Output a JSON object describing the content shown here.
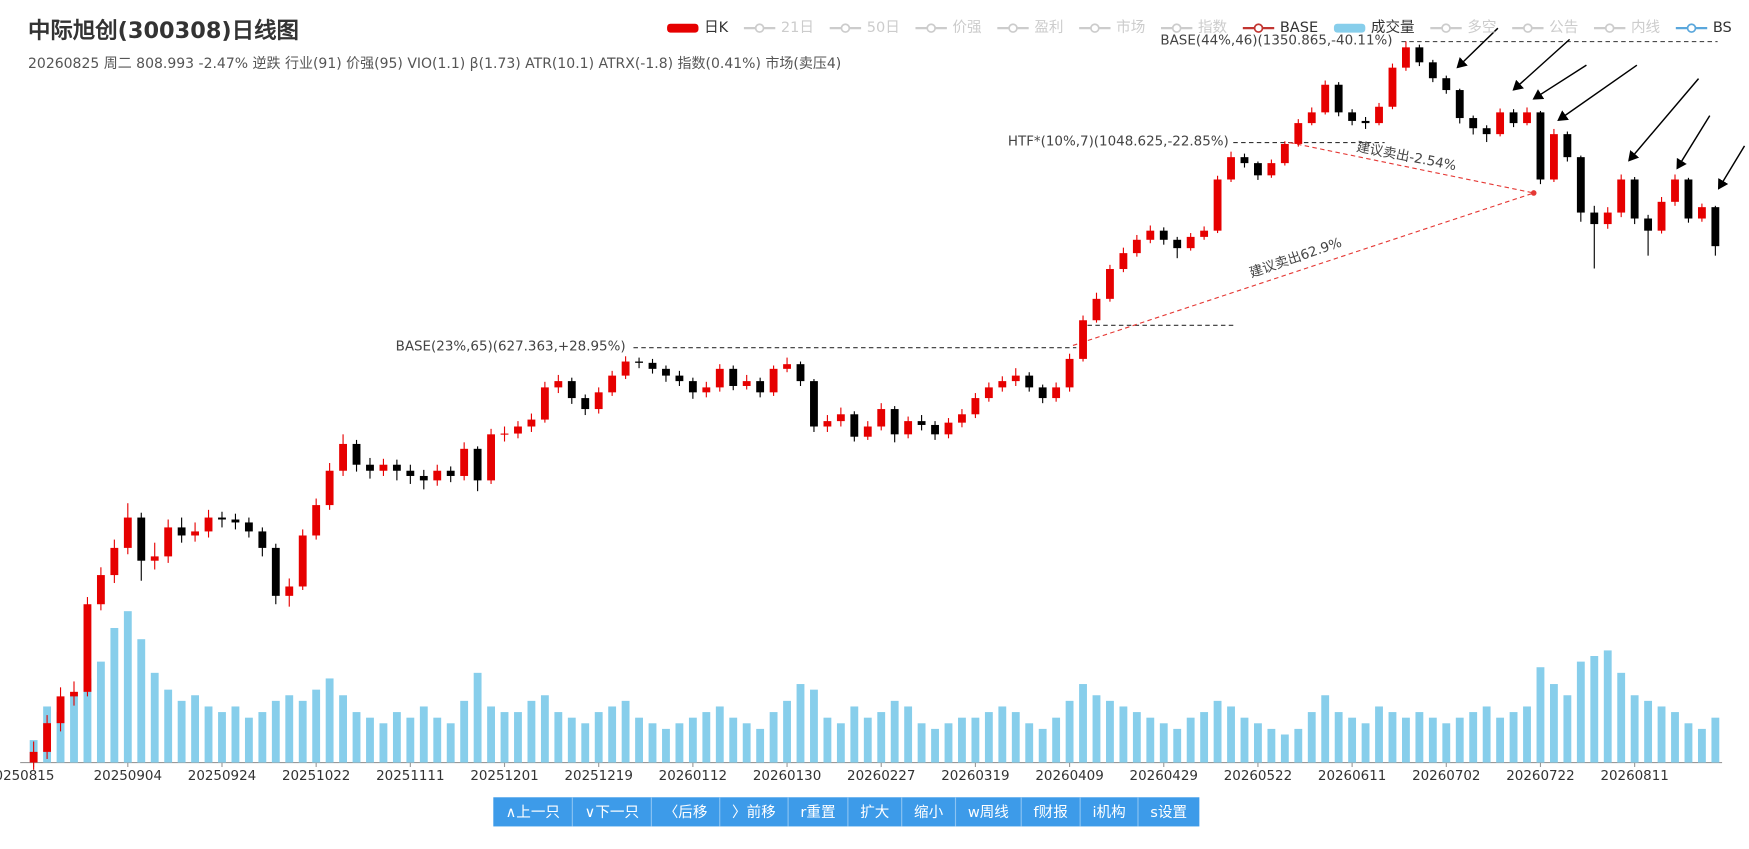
{
  "chart_data": {
    "type": "candlestick",
    "title": "中际旭创(300308)日线图",
    "subtitle": "20260825 周二 808.993 -2.47% 逆跌 行业(91) 价强(95) VIO(1.1) β(1.73) ATR(10.1) ATRX(-1.8) 指数(0.41%) 市场(卖压4)",
    "log_y": true,
    "ylim": [
      222,
      1377
    ],
    "y2lim": [
      0,
      150
    ],
    "up_color": "#e60000",
    "down_color": "#000000",
    "volume_color": "#87ceeb",
    "categories": [
      "20250815",
      null,
      null,
      null,
      null,
      null,
      null,
      "20250904",
      null,
      null,
      null,
      null,
      null,
      null,
      "20250924",
      null,
      null,
      null,
      null,
      null,
      null,
      "20251022",
      null,
      null,
      null,
      null,
      null,
      null,
      "20251111",
      null,
      null,
      null,
      null,
      null,
      null,
      "20251201",
      null,
      null,
      null,
      null,
      null,
      null,
      "20251219",
      null,
      null,
      null,
      null,
      null,
      null,
      "20260112",
      null,
      null,
      null,
      null,
      null,
      null,
      "20260130",
      null,
      null,
      null,
      null,
      null,
      null,
      "20260227",
      null,
      null,
      null,
      null,
      null,
      null,
      "20260319",
      null,
      null,
      null,
      null,
      null,
      null,
      "20260409",
      null,
      null,
      null,
      null,
      null,
      null,
      "20260429",
      null,
      null,
      null,
      null,
      null,
      null,
      "20260522",
      null,
      null,
      null,
      null,
      null,
      null,
      "20260611",
      null,
      null,
      null,
      null,
      null,
      null,
      "20260702",
      null,
      null,
      null,
      null,
      null,
      null,
      "20260722",
      null,
      null,
      null,
      null,
      null,
      null,
      "20260811",
      null,
      null,
      null,
      null,
      null,
      null
    ],
    "open": [
      222,
      228,
      245,
      262,
      265,
      330,
      355,
      380,
      410,
      368,
      372,
      400,
      392,
      396,
      410,
      408,
      405,
      396,
      380,
      337,
      345,
      392,
      423,
      461,
      493,
      468,
      461,
      468,
      461,
      455,
      450,
      461,
      455,
      487,
      450,
      505,
      506,
      515,
      524,
      568,
      577,
      553,
      538,
      561,
      585,
      606,
      604,
      595,
      585,
      577,
      561,
      568,
      595,
      570,
      577,
      561,
      595,
      602,
      577,
      515,
      522,
      531,
      502,
      515,
      538,
      505,
      522,
      517,
      505,
      520,
      531,
      553,
      568,
      577,
      585,
      568,
      553,
      568,
      610,
      672,
      709,
      764,
      795,
      822,
      841,
      822,
      805,
      828,
      841,
      956,
      1011,
      996,
      966,
      996,
      1045,
      1101,
      1131,
      1212,
      1131,
      1107,
      1101,
      1147,
      1265,
      1331,
      1282,
      1232,
      1196,
      1115,
      1087,
      1071,
      1131,
      1101,
      1131,
      956,
      1071,
      1011,
      880,
      855,
      880,
      956,
      867,
      841,
      904,
      956,
      867,
      892
    ],
    "high": [
      234,
      250,
      268,
      272,
      336,
      362,
      388,
      425,
      415,
      385,
      408,
      410,
      405,
      418,
      416,
      414,
      410,
      400,
      384,
      352,
      398,
      430,
      470,
      505,
      498,
      476,
      475,
      474,
      468,
      462,
      468,
      466,
      495,
      490,
      512,
      515,
      522,
      532,
      576,
      586,
      582,
      558,
      568,
      592,
      614,
      612,
      610,
      600,
      592,
      582,
      576,
      602,
      600,
      586,
      582,
      600,
      612,
      606,
      580,
      530,
      540,
      535,
      522,
      546,
      542,
      528,
      530,
      522,
      526,
      538,
      560,
      575,
      584,
      596,
      590,
      572,
      575,
      618,
      680,
      720,
      772,
      806,
      832,
      852,
      848,
      828,
      836,
      850,
      965,
      1025,
      1020,
      1000,
      1005,
      1052,
      1112,
      1145,
      1225,
      1220,
      1140,
      1118,
      1158,
      1278,
      1350.865,
      1340,
      1290,
      1240,
      1200,
      1122,
      1095,
      1142,
      1140,
      1145,
      1135,
      1085,
      1078,
      1015,
      895,
      892,
      968,
      962,
      875,
      915,
      968,
      960,
      900,
      895
    ],
    "low": [
      218,
      224,
      240,
      256,
      262,
      325,
      348,
      374,
      350,
      360,
      366,
      385,
      386,
      390,
      400,
      398,
      390,
      372,
      330,
      328,
      342,
      388,
      418,
      455,
      460,
      452,
      455,
      450,
      446,
      440,
      444,
      448,
      450,
      438,
      446,
      496,
      500,
      508,
      520,
      560,
      545,
      530,
      532,
      556,
      580,
      596,
      588,
      576,
      570,
      552,
      554,
      562,
      564,
      565,
      554,
      556,
      590,
      570,
      508,
      508,
      515,
      496,
      498,
      510,
      495,
      500,
      510,
      498,
      500,
      514,
      526,
      548,
      562,
      570,
      562,
      546,
      548,
      562,
      606,
      668,
      704,
      758,
      788,
      815,
      812,
      785,
      800,
      822,
      836,
      950,
      985,
      955,
      960,
      990,
      1038,
      1095,
      1125,
      1120,
      1095,
      1085,
      1095,
      1140,
      1255,
      1270,
      1220,
      1185,
      1100,
      1070,
      1050,
      1065,
      1090,
      1095,
      945,
      950,
      1000,
      860,
      765,
      845,
      870,
      855,
      790,
      835,
      895,
      858,
      860,
      790
    ],
    "close": [
      228,
      245,
      262,
      265,
      330,
      355,
      380,
      410,
      368,
      372,
      400,
      392,
      396,
      410,
      408,
      405,
      396,
      380,
      337,
      345,
      392,
      423,
      461,
      493,
      468,
      461,
      468,
      461,
      455,
      450,
      461,
      455,
      487,
      450,
      505,
      506,
      515,
      524,
      568,
      577,
      553,
      538,
      561,
      585,
      606,
      604,
      595,
      585,
      577,
      561,
      568,
      595,
      570,
      577,
      561,
      595,
      602,
      577,
      515,
      522,
      531,
      502,
      515,
      538,
      505,
      522,
      517,
      505,
      520,
      531,
      553,
      568,
      577,
      585,
      568,
      553,
      568,
      610,
      672,
      709,
      764,
      795,
      822,
      841,
      822,
      805,
      828,
      841,
      956,
      1011,
      996,
      966,
      996,
      1045,
      1101,
      1131,
      1212,
      1131,
      1107,
      1101,
      1147,
      1265,
      1331,
      1282,
      1232,
      1196,
      1115,
      1087,
      1071,
      1131,
      1101,
      1131,
      956,
      1071,
      1011,
      880,
      855,
      880,
      956,
      867,
      841,
      904,
      956,
      867,
      892,
      808.993
    ],
    "volume": [
      20,
      50,
      45,
      60,
      75,
      90,
      120,
      135,
      110,
      80,
      65,
      55,
      60,
      50,
      45,
      50,
      40,
      45,
      55,
      60,
      55,
      65,
      75,
      60,
      45,
      40,
      35,
      45,
      40,
      50,
      40,
      35,
      55,
      80,
      50,
      45,
      45,
      55,
      60,
      45,
      40,
      35,
      45,
      50,
      55,
      40,
      35,
      30,
      35,
      40,
      45,
      50,
      40,
      35,
      30,
      45,
      55,
      70,
      65,
      40,
      35,
      50,
      40,
      45,
      55,
      50,
      35,
      30,
      35,
      40,
      40,
      45,
      50,
      45,
      35,
      30,
      40,
      55,
      70,
      60,
      55,
      50,
      45,
      40,
      35,
      30,
      40,
      45,
      55,
      50,
      40,
      35,
      30,
      25,
      30,
      45,
      60,
      45,
      40,
      35,
      50,
      45,
      40,
      45,
      40,
      35,
      40,
      45,
      50,
      40,
      45,
      50,
      85,
      70,
      60,
      90,
      95,
      100,
      80,
      60,
      55,
      50,
      45,
      35,
      30,
      40
    ],
    "legend": [
      {
        "name": "日K",
        "color": "#e60000",
        "icon": "rect"
      },
      {
        "name": "21日",
        "color": "#cccccc",
        "icon": "line"
      },
      {
        "name": "50日",
        "color": "#cccccc",
        "icon": "line"
      },
      {
        "name": "价强",
        "color": "#cccccc",
        "icon": "line"
      },
      {
        "name": "盈利",
        "color": "#cccccc",
        "icon": "line"
      },
      {
        "name": "市场",
        "color": "#cccccc",
        "icon": "line"
      },
      {
        "name": "指数",
        "color": "#cccccc",
        "icon": "line"
      },
      {
        "name": "BASE",
        "color": "#c23531",
        "icon": "line"
      },
      {
        "name": "成交量",
        "color": "#87ceeb",
        "icon": "rect"
      },
      {
        "name": "多空",
        "color": "#cccccc",
        "icon": "line"
      },
      {
        "name": "公告",
        "color": "#cccccc",
        "icon": "line"
      },
      {
        "name": "内线",
        "color": "#cccccc",
        "icon": "line"
      },
      {
        "name": "BS",
        "color": "#5aa7dc",
        "icon": "line"
      }
    ],
    "annotations": [
      "BASE(23%,65)(627.363,+28.95%)",
      "HTF*(10%,7)(1048.625,-22.85%)",
      "BASE(44%,46)(1350.865,-40.11%)",
      "建议卖出-2.54%",
      "建议卖出62.9%"
    ]
  },
  "toolbar": [
    "∧上一只",
    "∨下一只",
    "〈后移",
    "〉前移",
    "r重置",
    "扩大",
    "缩小",
    "w周线",
    "f财报",
    "i机构",
    "s设置"
  ]
}
